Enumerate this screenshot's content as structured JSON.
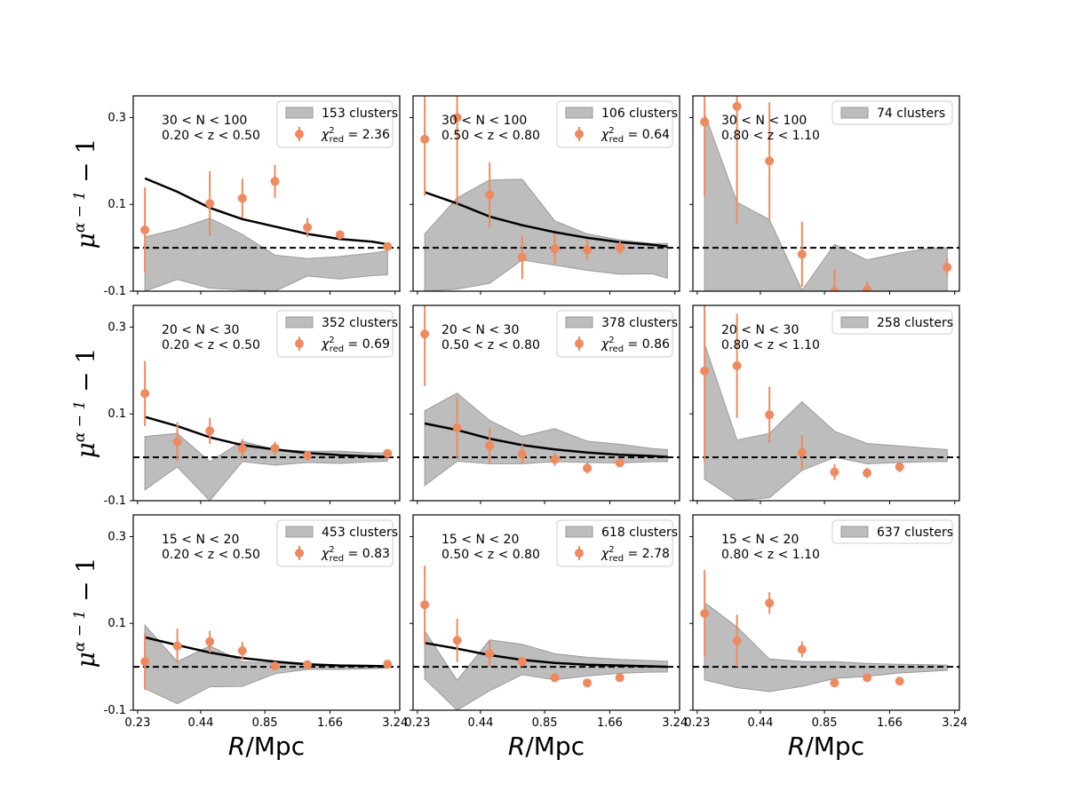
{
  "colors": {
    "band_fill": "#bdbdbd",
    "band_edge": "#9a9a9a",
    "points": "#ef8a5e",
    "model_line": "#000000",
    "reference_line": "#000000",
    "frame": "#000000"
  },
  "chart_data": {
    "type": "errorbar-grid",
    "rows": 3,
    "cols": 3,
    "xlabel": "R/Mpc",
    "ylabel": "μ^{α−1} − 1",
    "ylabel_parts": {
      "base": "μ",
      "exponent": "α − 1",
      "tail": " − 1"
    },
    "xlabel_parts": {
      "italic": "R",
      "rest": "/Mpc"
    },
    "x_scale": "log",
    "xlim": [
      0.22,
      3.4
    ],
    "ylim": [
      -0.1,
      0.35
    ],
    "x_ticks": [
      0.23,
      0.44,
      0.85,
      1.66,
      3.24
    ],
    "x_tick_labels": [
      "0.23",
      "0.44",
      "0.85",
      "1.66",
      "3.24"
    ],
    "y_ticks": [
      0.3,
      0.1,
      -0.1
    ],
    "y_tick_labels": [
      "0.3",
      "0.1",
      "-0.1"
    ],
    "reference_y": 0.0,
    "radii": [
      0.248,
      0.346,
      0.483,
      0.675,
      0.943,
      1.317,
      1.84,
      2.57,
      3.0
    ],
    "panels": [
      {
        "row": 0,
        "col": 0,
        "annotation": [
          "30 < N < 100",
          "0.20 < z < 0.50"
        ],
        "legend": {
          "band": "153 clusters",
          "points": "χ²_red = 2.36"
        },
        "band_lower": [
          -0.1,
          -0.073,
          -0.093,
          -0.097,
          -0.1,
          -0.065,
          -0.072,
          -0.064,
          -0.062
        ],
        "band_upper": [
          0.025,
          0.043,
          0.068,
          0.031,
          -0.017,
          -0.025,
          -0.02,
          -0.012,
          -0.007
        ],
        "model": [
          0.16,
          0.129,
          0.092,
          0.066,
          0.049,
          0.032,
          0.02,
          0.014,
          0.008
        ],
        "points_x": [
          0.248,
          0.483,
          0.675,
          0.943,
          1.317,
          1.84,
          3.0
        ],
        "points_y": [
          0.041,
          0.102,
          0.114,
          0.153,
          0.047,
          0.03,
          0.003
        ],
        "points_err": [
          0.098,
          0.075,
          0.045,
          0.038,
          0.022,
          0.01,
          0.01
        ]
      },
      {
        "row": 0,
        "col": 1,
        "annotation": [
          "30 < N < 100",
          "0.50 < z < 0.80"
        ],
        "legend": {
          "band": "106 clusters",
          "points": "χ²_red = 0.64"
        },
        "band_lower": [
          -0.1,
          -0.095,
          -0.082,
          -0.028,
          -0.04,
          -0.052,
          -0.061,
          -0.06,
          -0.07
        ],
        "band_upper": [
          0.032,
          0.115,
          0.156,
          0.158,
          0.062,
          0.032,
          0.018,
          0.01,
          0.01
        ],
        "model": [
          0.128,
          0.102,
          0.072,
          0.052,
          0.036,
          0.023,
          0.013,
          0.007,
          0.003
        ],
        "points_x": [
          0.248,
          0.346,
          0.483,
          0.675,
          0.943,
          1.317,
          1.84
        ],
        "points_y": [
          0.25,
          0.3,
          0.122,
          -0.022,
          -0.002,
          -0.005,
          0.0
        ],
        "points_err": [
          0.13,
          0.2,
          0.075,
          0.05,
          0.035,
          0.025,
          0.015
        ]
      },
      {
        "row": 0,
        "col": 2,
        "annotation": [
          "30 < N < 100",
          "0.80 < z < 1.10"
        ],
        "legend": {
          "band": "74 clusters"
        },
        "band_lower": [
          -0.1,
          -0.1,
          -0.1,
          -0.1,
          -0.1,
          -0.1,
          -0.1,
          -0.1,
          -0.1
        ],
        "band_upper": [
          0.31,
          0.105,
          0.065,
          -0.098,
          0.008,
          -0.028,
          -0.012,
          0.0,
          0.0
        ],
        "points_x": [
          0.248,
          0.346,
          0.483,
          0.675,
          0.943,
          1.317,
          3.0
        ],
        "points_y": [
          0.29,
          0.326,
          0.2,
          -0.015,
          -0.1,
          -0.097,
          -0.045
        ],
        "points_err": [
          0.17,
          0.27,
          0.135,
          0.075,
          0.05,
          0.02,
          0.02
        ]
      },
      {
        "row": 1,
        "col": 0,
        "annotation": [
          "20 < N < 30",
          "0.20 < z < 0.50"
        ],
        "legend": {
          "band": "352 clusters",
          "points": "χ²_red = 0.69"
        },
        "band_lower": [
          -0.075,
          -0.022,
          -0.1,
          -0.01,
          -0.018,
          -0.012,
          -0.014,
          -0.01,
          -0.009
        ],
        "band_upper": [
          0.048,
          0.055,
          -0.01,
          0.037,
          0.018,
          0.014,
          0.014,
          0.01,
          0.01
        ],
        "model": [
          0.093,
          0.072,
          0.046,
          0.028,
          0.018,
          0.01,
          0.005,
          0.002,
          0.001
        ],
        "points_x": [
          0.248,
          0.346,
          0.483,
          0.675,
          0.943,
          1.317,
          3.0
        ],
        "points_y": [
          0.147,
          0.036,
          0.061,
          0.02,
          0.021,
          0.004,
          0.009
        ],
        "points_err": [
          0.075,
          0.045,
          0.03,
          0.022,
          0.015,
          0.008,
          0.008
        ]
      },
      {
        "row": 1,
        "col": 1,
        "annotation": [
          "20 < N < 30",
          "0.50 < z < 0.80"
        ],
        "legend": {
          "band": "378 clusters",
          "points": "χ²_red = 0.86"
        },
        "band_lower": [
          -0.065,
          -0.009,
          -0.015,
          -0.015,
          -0.01,
          -0.012,
          -0.013,
          -0.01,
          -0.01
        ],
        "band_upper": [
          0.107,
          0.148,
          0.085,
          0.048,
          0.066,
          0.037,
          0.03,
          0.02,
          0.018
        ],
        "model": [
          0.078,
          0.063,
          0.043,
          0.028,
          0.018,
          0.011,
          0.006,
          0.003,
          0.001
        ],
        "points_x": [
          0.248,
          0.346,
          0.483,
          0.675,
          0.943,
          1.317,
          1.84
        ],
        "points_y": [
          0.284,
          0.068,
          0.027,
          0.007,
          -0.005,
          -0.025,
          -0.013
        ],
        "points_err": [
          0.12,
          0.07,
          0.04,
          0.022,
          0.015,
          0.012,
          0.008
        ]
      },
      {
        "row": 1,
        "col": 2,
        "annotation": [
          "20 < N < 30",
          "0.80 < z < 1.10"
        ],
        "legend": {
          "band": "258 clusters"
        },
        "band_lower": [
          -0.05,
          -0.1,
          -0.093,
          -0.03,
          0.0,
          -0.015,
          -0.012,
          -0.01,
          -0.01
        ],
        "band_upper": [
          0.262,
          0.04,
          0.055,
          0.128,
          0.06,
          0.032,
          0.026,
          0.02,
          0.018
        ],
        "points_x": [
          0.248,
          0.346,
          0.483,
          0.675,
          0.943,
          1.317,
          1.84
        ],
        "points_y": [
          0.199,
          0.211,
          0.098,
          0.011,
          -0.034,
          -0.036,
          -0.022
        ],
        "points_err": [
          0.21,
          0.12,
          0.065,
          0.04,
          0.018,
          0.012,
          0.012
        ]
      },
      {
        "row": 2,
        "col": 0,
        "annotation": [
          "15 < N < 20",
          "0.20 < z < 0.50"
        ],
        "legend": {
          "band": "453 clusters",
          "points": "χ²_red = 0.83"
        },
        "band_lower": [
          -0.05,
          -0.085,
          -0.046,
          -0.045,
          -0.016,
          -0.006,
          -0.006,
          -0.004,
          -0.003
        ],
        "band_upper": [
          0.096,
          0.012,
          0.048,
          0.012,
          0.009,
          0.003,
          0.002,
          0.002,
          0.002
        ],
        "model": [
          0.068,
          0.05,
          0.033,
          0.02,
          0.012,
          0.006,
          0.003,
          0.002,
          0.001
        ],
        "points_x": [
          0.248,
          0.346,
          0.483,
          0.675,
          0.943,
          1.317,
          3.0
        ],
        "points_y": [
          0.012,
          0.048,
          0.058,
          0.037,
          0.002,
          0.005,
          0.006
        ],
        "points_err": [
          0.065,
          0.04,
          0.025,
          0.02,
          0.008,
          0.005,
          0.004
        ]
      },
      {
        "row": 2,
        "col": 1,
        "annotation": [
          "15 < N < 20",
          "0.50 < z < 0.80"
        ],
        "legend": {
          "band": "618 clusters",
          "points": "χ²_red = 2.78"
        },
        "band_lower": [
          -0.028,
          -0.1,
          -0.055,
          -0.018,
          -0.03,
          -0.021,
          -0.015,
          -0.012,
          -0.012
        ],
        "band_upper": [
          0.083,
          -0.031,
          0.062,
          0.052,
          0.03,
          0.022,
          0.017,
          0.014,
          0.013
        ],
        "model": [
          0.055,
          0.042,
          0.027,
          0.016,
          0.009,
          0.005,
          0.003,
          0.001,
          0.0
        ],
        "points_x": [
          0.248,
          0.346,
          0.483,
          0.675,
          0.943,
          1.317,
          1.84
        ],
        "points_y": [
          0.143,
          0.061,
          0.03,
          0.012,
          -0.025,
          -0.037,
          -0.025
        ],
        "points_err": [
          0.09,
          0.05,
          0.03,
          0.012,
          0.01,
          0.005,
          0.006
        ]
      },
      {
        "row": 2,
        "col": 2,
        "annotation": [
          "15 < N < 20",
          "0.80 < z < 1.10"
        ],
        "legend": {
          "band": "637 clusters"
        },
        "band_lower": [
          -0.03,
          -0.048,
          -0.057,
          -0.045,
          -0.027,
          -0.022,
          -0.014,
          -0.01,
          -0.008
        ],
        "band_upper": [
          0.148,
          0.092,
          0.018,
          0.012,
          0.012,
          0.008,
          0.006,
          0.005,
          0.004
        ],
        "points_x": [
          0.248,
          0.346,
          0.483,
          0.675,
          0.943,
          1.317,
          1.84
        ],
        "points_y": [
          0.123,
          0.06,
          0.147,
          0.04,
          -0.037,
          -0.025,
          -0.033
        ],
        "points_err": [
          0.1,
          0.06,
          0.025,
          0.018,
          0.01,
          0.006,
          0.004
        ]
      }
    ]
  }
}
